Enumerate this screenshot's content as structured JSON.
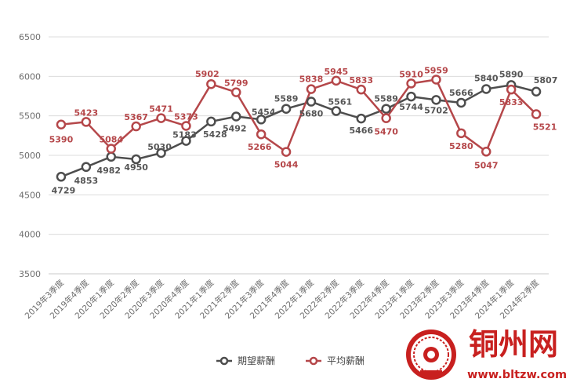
{
  "chart_data": {
    "type": "line",
    "title": "",
    "xlabel": "",
    "ylabel": "",
    "ylim": [
      3500,
      6500
    ],
    "yticks": [
      3500,
      4000,
      4500,
      5000,
      5500,
      6000,
      6500
    ],
    "grid": "horizontal",
    "legend_position": "bottom-center",
    "categories": [
      "2019年3季度",
      "2019年4季度",
      "2020年1季度",
      "2020年2季度",
      "2020年3季度",
      "2020年4季度",
      "2021年1季度",
      "2021年2季度",
      "2021年3季度",
      "2021年4季度",
      "2022年1季度",
      "2022年2季度",
      "2022年3季度",
      "2022年4季度",
      "2023年1季度",
      "2023年2季度",
      "2023年3季度",
      "2023年4季度",
      "2024年1季度",
      "2024年2季度"
    ],
    "series": [
      {
        "name": "期望薪酬",
        "color": "#4d4d4d",
        "values": [
          4729,
          4853,
          4982,
          4950,
          5030,
          5183,
          5428,
          5492,
          5454,
          5589,
          5680,
          5561,
          5466,
          5589,
          5744,
          5702,
          5666,
          5840,
          5890,
          5807
        ]
      },
      {
        "name": "平均薪酬",
        "color": "#b5474a",
        "values": [
          5390,
          5423,
          5084,
          5367,
          5471,
          5373,
          5902,
          5799,
          5266,
          5044,
          5838,
          5945,
          5833,
          5470,
          5910,
          5959,
          5280,
          5047,
          5833,
          5521
        ]
      }
    ]
  },
  "watermark": {
    "name": "铜州网",
    "url": "www.bltzw.com",
    "color": "#c8201f"
  }
}
